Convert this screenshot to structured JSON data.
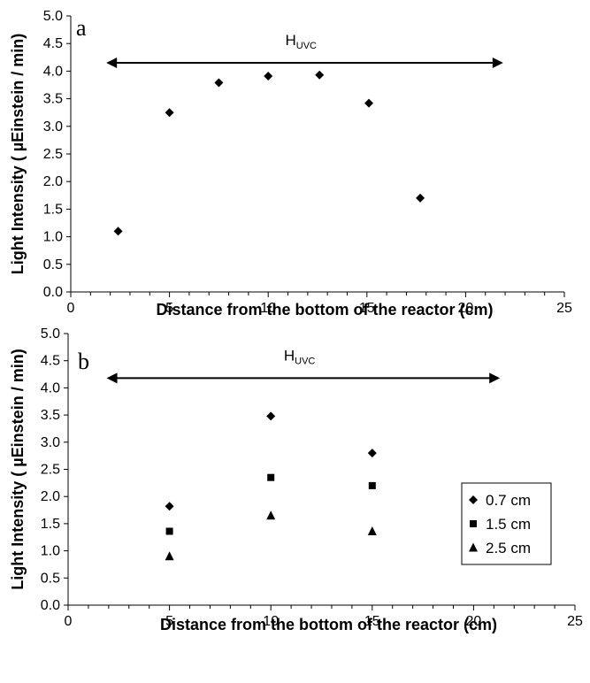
{
  "chart_data": [
    {
      "type": "scatter",
      "panel_label": "a",
      "xlabel": "Distance from the bottom of the reactor (cm)",
      "ylabel": "Light Intensity ( µEinstein / min)",
      "xlim": [
        0,
        25
      ],
      "ylim": [
        0.0,
        5.0
      ],
      "x_ticks": [
        "0",
        "5",
        "10",
        "15",
        "20",
        "25"
      ],
      "y_ticks": [
        "0.0",
        "0.5",
        "1.0",
        "1.5",
        "2.0",
        "2.5",
        "3.0",
        "3.5",
        "4.0",
        "4.5",
        "5.0"
      ],
      "grid": false,
      "annotation": {
        "text": "H",
        "subscript": "UVC",
        "arrow_from": 1.8,
        "arrow_to": 21.9,
        "y": 4.15
      },
      "series": [
        {
          "marker": "diamond",
          "color": "#000000",
          "x": [
            2.4,
            5.0,
            7.5,
            10.0,
            12.6,
            15.1,
            17.7
          ],
          "y": [
            1.1,
            3.25,
            3.79,
            3.91,
            3.93,
            3.42,
            1.7
          ]
        }
      ]
    },
    {
      "type": "scatter",
      "panel_label": "b",
      "xlabel": "Distance from the bottom of the reactor (cm)",
      "ylabel": "Light Intensity ( µEinstein / min)",
      "xlim": [
        0,
        25
      ],
      "ylim": [
        0.0,
        5.0
      ],
      "x_ticks": [
        "0",
        "5",
        "10",
        "15",
        "20",
        "25"
      ],
      "y_ticks": [
        "0.0",
        "0.5",
        "1.0",
        "1.5",
        "2.0",
        "2.5",
        "3.0",
        "3.5",
        "4.0",
        "4.5",
        "5.0"
      ],
      "grid": false,
      "legend_position": "right",
      "annotation": {
        "text": "H",
        "subscript": "UVC",
        "arrow_from": 1.9,
        "arrow_to": 21.3,
        "y": 4.18
      },
      "series": [
        {
          "name": "0.7 cm",
          "marker": "diamond",
          "color": "#000000",
          "x": [
            5,
            10,
            15
          ],
          "y": [
            1.82,
            3.48,
            2.8
          ]
        },
        {
          "name": "1.5 cm",
          "marker": "square",
          "color": "#000000",
          "x": [
            5,
            10,
            15
          ],
          "y": [
            1.36,
            2.35,
            2.2
          ]
        },
        {
          "name": "2.5 cm",
          "marker": "triangle",
          "color": "#000000",
          "x": [
            5,
            10,
            15
          ],
          "y": [
            0.9,
            1.65,
            1.36
          ]
        }
      ]
    }
  ]
}
